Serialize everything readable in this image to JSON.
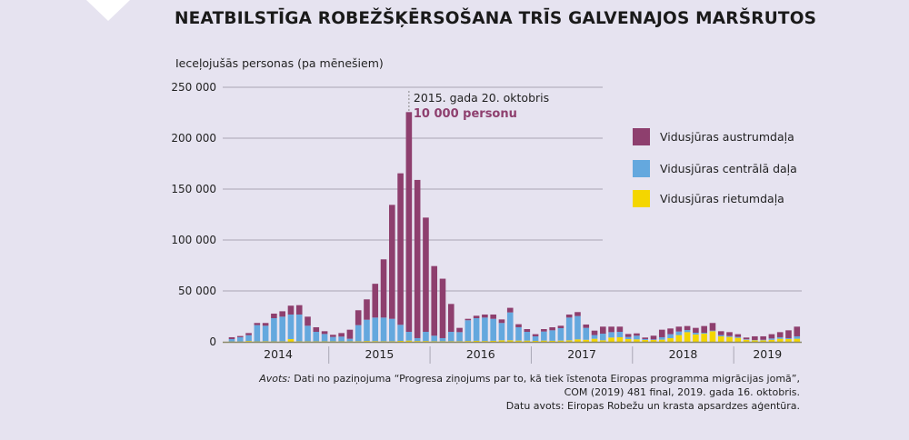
{
  "title": "NEATBILSTĪGA ROBEŽŠĶĒRSOŠANA TRĪS GALVENAJOS MARŠRUTOS",
  "colors": {
    "background": "#e6e3f0",
    "east": "#8e3f6e",
    "central": "#64a8de",
    "west": "#f4d600",
    "annotation": "#8e3f6e"
  },
  "source": {
    "prefix": "Avots:",
    "line1": " Dati no paziņojuma “Progresa ziņojums par to, kā tiek īstenota Eiropas programma migrācijas jomā”,",
    "line2": "COM (2019) 481 final, 2019. gada 16. oktobris.",
    "line3": "Datu avots: Eiropas Robežu un krasta apsardzes aģentūra."
  },
  "chart_data": {
    "type": "bar",
    "stacked": true,
    "title": "NEATBILSTĪGA ROBEŽŠĶĒRSOŠANA TRĪS GALVENAJOS MARŠRUTOS",
    "ylabel": "Ieceļojušās personas (pa mēnešiem)",
    "xlabel": "",
    "ylim": [
      0,
      250000
    ],
    "yticks": [
      0,
      50000,
      100000,
      150000,
      200000,
      250000
    ],
    "ytick_labels": [
      "0",
      "50 000",
      "100 000",
      "150 000",
      "200 000",
      "250 000"
    ],
    "grid": "horizontal",
    "legend_position": "right",
    "year_labels": [
      "2014",
      "2015",
      "2016",
      "2017",
      "2018",
      "2019"
    ],
    "months_per_year": [
      12,
      12,
      12,
      12,
      12,
      8
    ],
    "annotation": {
      "line1": "2015. gada 20. oktobris",
      "line2": "10 000 personu",
      "month_index": 21
    },
    "series": [
      {
        "name": "Vidusjūras rietumdaļa",
        "color": "#f4d600",
        "values": [
          300,
          300,
          800,
          400,
          600,
          400,
          500,
          2700,
          500,
          500,
          500,
          500,
          500,
          500,
          500,
          600,
          800,
          700,
          600,
          600,
          900,
          1200,
          800,
          800,
          600,
          600,
          600,
          600,
          800,
          1000,
          800,
          1000,
          1500,
          1500,
          1200,
          1200,
          900,
          1200,
          1000,
          1200,
          1500,
          2400,
          2000,
          3000,
          1500,
          4200,
          4500,
          2700,
          2400,
          1800,
          1800,
          2100,
          3600,
          6600,
          9500,
          7200,
          8000,
          10400,
          5400,
          4800,
          3900,
          2000,
          1500,
          1500,
          2000,
          3000,
          2700,
          3000
        ]
      },
      {
        "name": "Vidusjūras centrālā daļa",
        "color": "#64a8de",
        "values": [
          2400,
          4200,
          5700,
          16000,
          15200,
          22800,
          24200,
          24100,
          26300,
          15300,
          9300,
          7200,
          4300,
          4600,
          2500,
          15800,
          20900,
          23100,
          23200,
          22000,
          15800,
          8600,
          2800,
          9000,
          5400,
          3000,
          9200,
          8900,
          20400,
          22200,
          23000,
          21600,
          17000,
          27400,
          13100,
          8600,
          4500,
          8900,
          10300,
          12200,
          22300,
          22900,
          11700,
          3600,
          6500,
          5300,
          5300,
          2100,
          3600,
          900,
          600,
          2400,
          3900,
          3500,
          2100,
          1700,
          900,
          600,
          1200,
          900,
          900,
          500,
          300,
          500,
          1300,
          1500,
          900,
          2400
        ]
      },
      {
        "name": "Vidusjūras austrumdaļa",
        "color": "#8e3f6e",
        "values": [
          1800,
          1200,
          2100,
          2100,
          2700,
          4500,
          5300,
          8700,
          9200,
          8900,
          4500,
          2700,
          2100,
          3500,
          8900,
          14600,
          20000,
          33200,
          57200,
          111900,
          148800,
          215800,
          155400,
          112200,
          68400,
          58400,
          27400,
          4200,
          1400,
          2400,
          3000,
          4200,
          3500,
          4500,
          3000,
          2700,
          2100,
          2400,
          3000,
          2400,
          3000,
          3900,
          3300,
          4400,
          6900,
          5400,
          5100,
          2900,
          2300,
          1500,
          3600,
          7400,
          5600,
          4800,
          3900,
          4800,
          6600,
          7500,
          3800,
          3800,
          2700,
          1700,
          3600,
          3400,
          4200,
          5000,
          7700,
          9500
        ]
      }
    ],
    "legend_order": [
      "Vidusjūras austrumdaļa",
      "Vidusjūras centrālā daļa",
      "Vidusjūras rietumdaļa"
    ]
  }
}
